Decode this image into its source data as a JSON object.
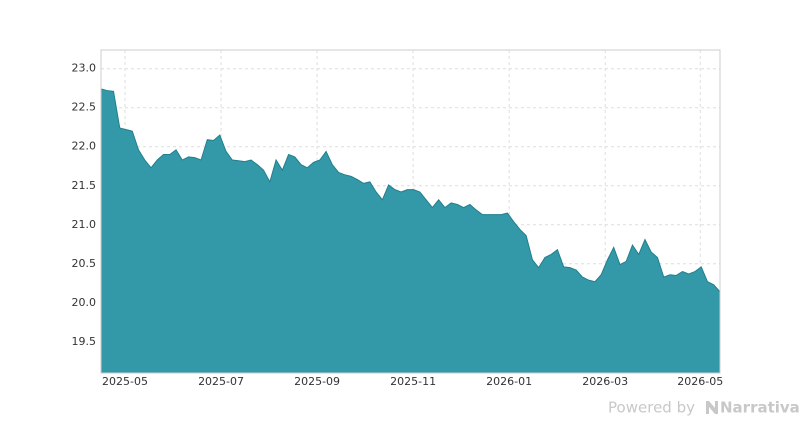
{
  "chart_data": {
    "type": "area",
    "values": [
      22.74,
      22.72,
      22.71,
      22.24,
      22.22,
      22.2,
      21.96,
      21.83,
      21.73,
      21.83,
      21.9,
      21.9,
      21.96,
      21.83,
      21.87,
      21.86,
      21.83,
      22.09,
      22.08,
      22.15,
      21.94,
      21.83,
      21.82,
      21.81,
      21.83,
      21.77,
      21.7,
      21.55,
      21.83,
      21.7,
      21.9,
      21.87,
      21.77,
      21.73,
      21.8,
      21.83,
      21.94,
      21.77,
      21.67,
      21.64,
      21.62,
      21.58,
      21.53,
      21.55,
      21.42,
      21.32,
      21.51,
      21.45,
      21.42,
      21.45,
      21.45,
      21.42,
      21.32,
      21.22,
      21.32,
      21.22,
      21.28,
      21.26,
      21.22,
      21.26,
      21.19,
      21.13,
      21.13,
      21.13,
      21.13,
      21.15,
      21.04,
      20.94,
      20.86,
      20.55,
      20.45,
      20.58,
      20.62,
      20.68,
      20.46,
      20.45,
      20.42,
      20.33,
      20.29,
      20.27,
      20.36,
      20.55,
      20.71,
      20.49,
      20.53,
      20.74,
      20.62,
      20.81,
      20.65,
      20.58,
      20.33,
      20.36,
      20.35,
      20.4,
      20.37,
      20.4,
      20.46,
      20.27,
      20.23,
      20.14
    ],
    "color": "#3399a8",
    "line_color": "#217f8c",
    "xlim": [
      0,
      99
    ],
    "xticks": [
      {
        "value": 3.84,
        "label": "2025-05"
      },
      {
        "value": 19.2,
        "label": "2025-07"
      },
      {
        "value": 34.56,
        "label": "2025-09"
      },
      {
        "value": 49.92,
        "label": "2025-11"
      },
      {
        "value": 65.28,
        "label": "2026-01"
      },
      {
        "value": 80.64,
        "label": "2026-03"
      },
      {
        "value": 95.84,
        "label": "2026-05"
      }
    ],
    "ylim": [
      19.1,
      23.24
    ],
    "yticks": [
      {
        "value": 19.5,
        "label": "19.5"
      },
      {
        "value": 20,
        "label": "20.0"
      },
      {
        "value": 20.5,
        "label": "20.5"
      },
      {
        "value": 21,
        "label": "21.0"
      },
      {
        "value": 21.5,
        "label": "21.5"
      },
      {
        "value": 22,
        "label": "22.0"
      },
      {
        "value": 22.5,
        "label": "22.5"
      },
      {
        "value": 23,
        "label": "23.0"
      }
    ],
    "grid": true
  },
  "footer": {
    "prefix": "Powered by",
    "brand": "Narrativa"
  }
}
